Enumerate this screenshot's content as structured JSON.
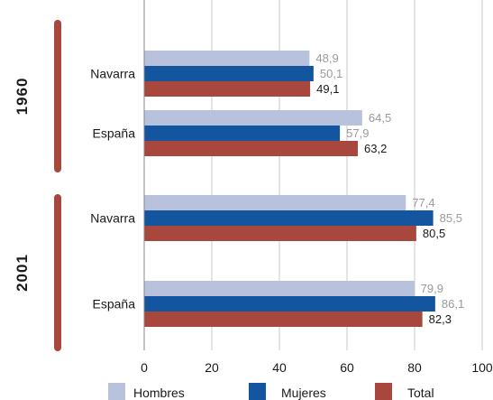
{
  "chart_data": {
    "type": "bar",
    "orientation": "horizontal",
    "xlim": [
      0,
      100
    ],
    "xticks": [
      "0",
      "20",
      "40",
      "60",
      "80",
      "100"
    ],
    "grid": true,
    "legend_position": "bottom",
    "groups": [
      {
        "year": "1960",
        "categories": [
          {
            "label": "Navarra",
            "values": [
              "48,9",
              "50,1",
              "49,1"
            ]
          },
          {
            "label": "España",
            "values": [
              "64,5",
              "57,9",
              "63,2"
            ]
          }
        ]
      },
      {
        "year": "2001",
        "categories": [
          {
            "label": "Navarra",
            "values": [
              "77,4",
              "85,5",
              "80,5"
            ]
          },
          {
            "label": "España",
            "values": [
              "79,9",
              "86,1",
              "82,3"
            ]
          }
        ]
      }
    ],
    "series": [
      {
        "name": "Hombres",
        "color": "#b8c2dc",
        "label_color": "#9a9a9a"
      },
      {
        "name": "Mujeres",
        "color": "#1455a0",
        "label_color": "#9a9a9a"
      },
      {
        "name": "Total",
        "color": "#a8473e",
        "label_color": "#1a1a1a"
      }
    ],
    "bracket_color": "#a8473e",
    "grid_color": "#c8c8c8"
  }
}
